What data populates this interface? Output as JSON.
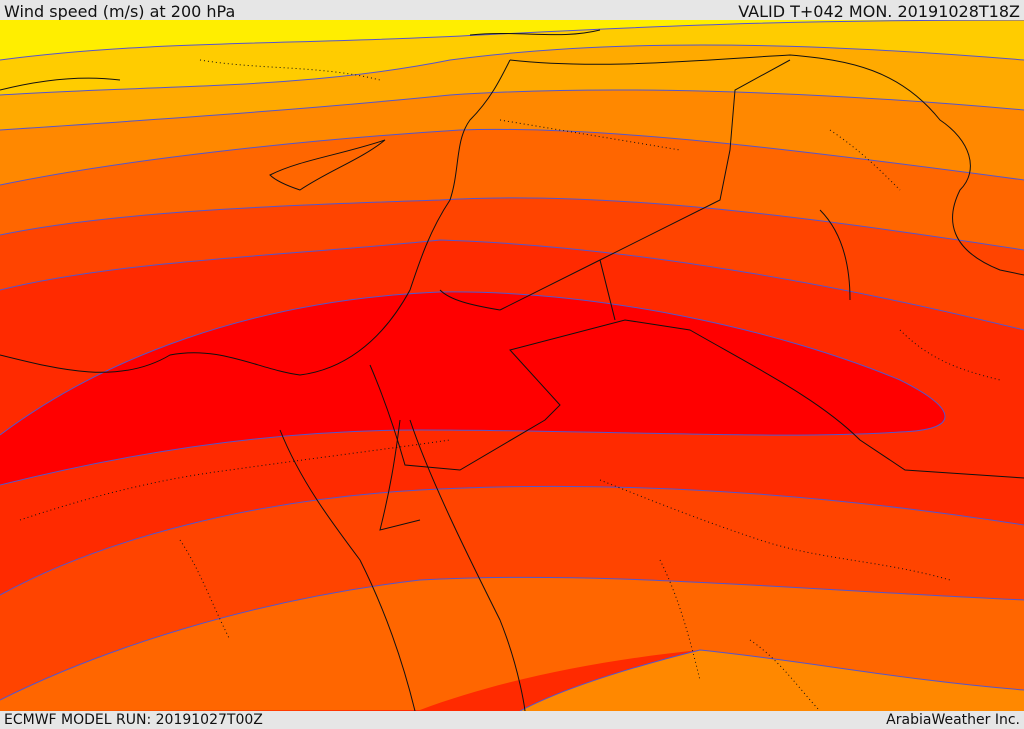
{
  "header": {
    "title": "Wind speed (m/s) at 200 hPa",
    "valid": "VALID T+042 MON. 20191028T18Z"
  },
  "footer": {
    "model_run": "ECMWF MODEL RUN: 20191027T00Z",
    "credit": "ArabiaWeather Inc."
  },
  "colors": {
    "band_1": "#ffee00",
    "band_2": "#ffcc00",
    "band_3": "#ffaa00",
    "band_4": "#ff8800",
    "band_5": "#ff6600",
    "band_6": "#ff4400",
    "band_7": "#ff2a00",
    "band_8": "#ff0000",
    "contour": "#5555cc",
    "border": "#111111"
  }
}
